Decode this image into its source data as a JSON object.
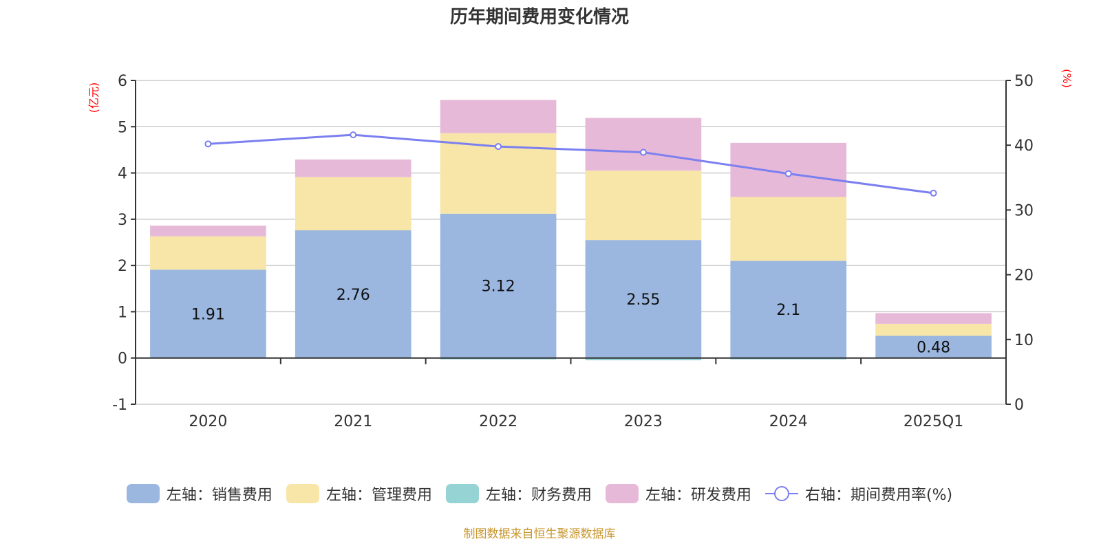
{
  "colors": {
    "sales": "#9bb7e0",
    "admin": "#f7e6a8",
    "finance": "#96d3d4",
    "rnd": "#e7b9d8",
    "rate_line": "#7b7ff0",
    "axis_label": "#ff0000",
    "footer": "#c8962e"
  },
  "chart_data": {
    "type": "bar",
    "title": "历年期间费用变化情况",
    "categories": [
      "2020",
      "2021",
      "2022",
      "2023",
      "2024",
      "2025Q1"
    ],
    "stacked": true,
    "left_axis": {
      "label": "(亿元)",
      "ylim": [
        -1,
        6
      ],
      "ticks": [
        "-1",
        "0",
        "1",
        "2",
        "3",
        "4",
        "5",
        "6"
      ]
    },
    "right_axis": {
      "label": "(%)",
      "ylim": [
        0,
        50
      ],
      "ticks": [
        "0",
        "10",
        "20",
        "30",
        "40",
        "50"
      ]
    },
    "grid": true,
    "legend_position": "bottom",
    "series": [
      {
        "name": "左轴：销售费用",
        "key": "sales",
        "type": "bar",
        "axis": "left",
        "values": [
          1.91,
          2.76,
          3.12,
          2.55,
          2.1,
          0.48
        ],
        "labels": [
          "1.91",
          "2.76",
          "3.12",
          "2.55",
          "2.1",
          "0.48"
        ]
      },
      {
        "name": "左轴：管理费用",
        "key": "admin",
        "type": "bar",
        "axis": "left",
        "values": [
          0.72,
          1.15,
          1.74,
          1.5,
          1.38,
          0.26
        ]
      },
      {
        "name": "左轴：财务费用",
        "key": "finance",
        "type": "bar",
        "axis": "left",
        "values": [
          0.0,
          0.0,
          -0.03,
          -0.05,
          -0.03,
          -0.01
        ]
      },
      {
        "name": "左轴：研发费用",
        "key": "rnd",
        "type": "bar",
        "axis": "left",
        "values": [
          0.23,
          0.38,
          0.72,
          1.14,
          1.17,
          0.23
        ]
      },
      {
        "name": "右轴：期间费用率(%)",
        "key": "rate_line",
        "type": "line",
        "axis": "right",
        "values": [
          40.2,
          41.6,
          39.8,
          38.9,
          35.6,
          32.6
        ]
      }
    ]
  },
  "footer": {
    "source": "制图数据来自恒生聚源数据库"
  }
}
